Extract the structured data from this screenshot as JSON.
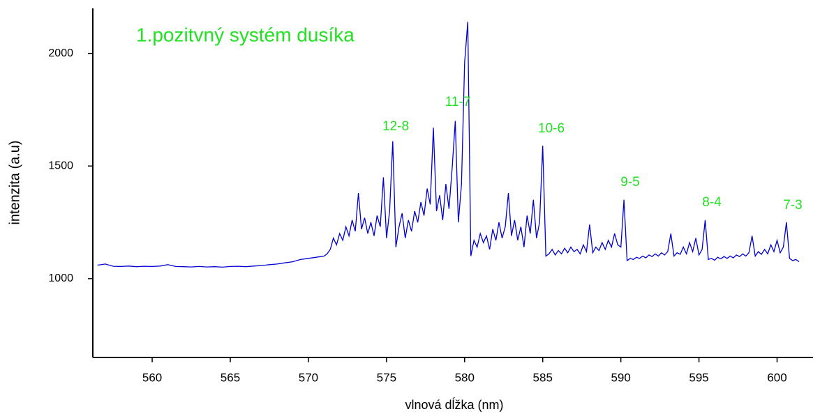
{
  "chart_data": {
    "type": "line",
    "title": "1.pozitvný systém dusíka",
    "xlabel": "vlnová dĺžka (nm)",
    "ylabel": "intenzita (a.u)",
    "annotations": [
      "12-8",
      "11-7",
      "10-6",
      "9-5",
      "8-4",
      "7-3"
    ],
    "color": "#0000d0",
    "xlim": [
      556.2,
      602.3
    ],
    "ylim": [
      650,
      2200
    ],
    "xticks": [
      560,
      565,
      570,
      575,
      580,
      585,
      590,
      595,
      600
    ],
    "yticks": [
      1000,
      1500,
      2000
    ],
    "x": [
      556.5,
      557,
      557.5,
      558,
      558.5,
      559,
      559.5,
      560,
      560.5,
      561,
      561.5,
      562,
      562.5,
      563,
      563.5,
      564,
      564.5,
      565,
      565.5,
      566,
      566.5,
      567,
      567.5,
      568,
      568.5,
      569,
      569.5,
      570,
      570.5,
      571,
      571.2,
      571.4,
      571.6,
      571.8,
      572.0,
      572.2,
      572.4,
      572.6,
      572.8,
      573.0,
      573.2,
      573.4,
      573.6,
      573.8,
      574.0,
      574.2,
      574.4,
      574.6,
      574.8,
      575.0,
      575.2,
      575.4,
      575.6,
      575.8,
      576.0,
      576.2,
      576.4,
      576.6,
      576.8,
      577.0,
      577.2,
      577.4,
      577.6,
      577.8,
      578.0,
      578.2,
      578.4,
      578.6,
      578.8,
      579.0,
      579.2,
      579.4,
      579.6,
      579.8,
      580.0,
      580.2,
      580.4,
      580.6,
      580.8,
      581.0,
      581.2,
      581.4,
      581.6,
      581.8,
      582.0,
      582.2,
      582.4,
      582.6,
      582.8,
      583.0,
      583.2,
      583.4,
      583.6,
      583.8,
      584.0,
      584.2,
      584.4,
      584.6,
      584.8,
      585.0,
      585.2,
      585.4,
      585.6,
      585.8,
      586.0,
      586.2,
      586.4,
      586.6,
      586.8,
      587.0,
      587.2,
      587.4,
      587.6,
      587.8,
      588.0,
      588.2,
      588.4,
      588.6,
      588.8,
      589.0,
      589.2,
      589.4,
      589.6,
      589.8,
      590.0,
      590.2,
      590.4,
      590.6,
      590.8,
      591.0,
      591.2,
      591.4,
      591.6,
      591.8,
      592.0,
      592.2,
      592.4,
      592.6,
      592.8,
      593.0,
      593.2,
      593.4,
      593.6,
      593.8,
      594.0,
      594.2,
      594.4,
      594.6,
      594.8,
      595.0,
      595.2,
      595.4,
      595.6,
      595.8,
      596.0,
      596.2,
      596.4,
      596.6,
      596.8,
      597.0,
      597.2,
      597.4,
      597.6,
      597.8,
      598.0,
      598.2,
      598.4,
      598.6,
      598.8,
      599.0,
      599.2,
      599.4,
      599.6,
      599.8,
      600.0,
      600.2,
      600.4,
      600.6,
      600.8,
      601.0,
      601.2,
      601.4
    ],
    "values": [
      1060,
      1065,
      1055,
      1054,
      1056,
      1053,
      1055,
      1054,
      1056,
      1062,
      1054,
      1053,
      1052,
      1054,
      1052,
      1053,
      1051,
      1054,
      1055,
      1053,
      1056,
      1058,
      1062,
      1065,
      1070,
      1075,
      1085,
      1090,
      1095,
      1100,
      1110,
      1130,
      1180,
      1150,
      1200,
      1170,
      1230,
      1190,
      1260,
      1210,
      1380,
      1220,
      1270,
      1200,
      1250,
      1190,
      1280,
      1230,
      1450,
      1180,
      1300,
      1610,
      1140,
      1230,
      1290,
      1180,
      1260,
      1210,
      1300,
      1250,
      1340,
      1280,
      1400,
      1330,
      1670,
      1300,
      1370,
      1260,
      1420,
      1310,
      1490,
      1700,
      1250,
      1420,
      1960,
      2140,
      1100,
      1170,
      1140,
      1200,
      1160,
      1190,
      1130,
      1220,
      1170,
      1250,
      1180,
      1230,
      1380,
      1190,
      1260,
      1170,
      1230,
      1140,
      1280,
      1200,
      1350,
      1180,
      1250,
      1590,
      1100,
      1110,
      1130,
      1105,
      1125,
      1110,
      1135,
      1115,
      1140,
      1120,
      1130,
      1110,
      1150,
      1120,
      1240,
      1115,
      1140,
      1125,
      1160,
      1130,
      1170,
      1140,
      1200,
      1150,
      1140,
      1350,
      1080,
      1090,
      1085,
      1095,
      1090,
      1100,
      1092,
      1105,
      1098,
      1110,
      1100,
      1115,
      1105,
      1120,
      1200,
      1100,
      1115,
      1108,
      1140,
      1110,
      1160,
      1120,
      1180,
      1105,
      1130,
      1260,
      1085,
      1090,
      1082,
      1095,
      1088,
      1098,
      1090,
      1100,
      1092,
      1105,
      1098,
      1110,
      1100,
      1115,
      1190,
      1100,
      1120,
      1108,
      1130,
      1110,
      1150,
      1120,
      1170,
      1115,
      1140,
      1250,
      1090,
      1080,
      1085,
      1075
    ]
  }
}
